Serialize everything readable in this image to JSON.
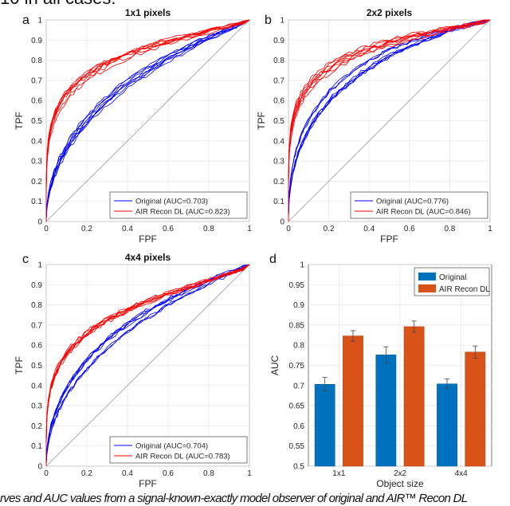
{
  "caption_top": "10   in all cases.",
  "caption_bottom": "rves and AUC values from a signal-known-exactly model observer of original and AIR™ Recon DL",
  "colors": {
    "original_roc": "#0000ff",
    "air_roc": "#ff0000",
    "original_bar": "#0072bd",
    "air_bar": "#d95319",
    "chance": "#999999"
  },
  "chart_data": [
    {
      "panel": "a",
      "type": "line",
      "title": "1x1 pixels",
      "xlabel": "FPF",
      "ylabel": "TPF",
      "xlim": [
        0,
        1
      ],
      "ylim": [
        0,
        1
      ],
      "xticks": [
        "0",
        "0.2",
        "0.4",
        "0.6",
        "0.8",
        "1"
      ],
      "yticks": [
        "0",
        "0.1",
        "0.2",
        "0.3",
        "0.4",
        "0.5",
        "0.6",
        "0.7",
        "0.8",
        "0.9",
        "1"
      ],
      "grid": true,
      "legend_position": "bottom-right",
      "chance_line": true,
      "series": [
        {
          "name": "Original (AUC=0.703)",
          "auc": 0.703,
          "curves": 8,
          "color": "#0000ff"
        },
        {
          "name": "AIR Recon DL (AUC=0.823)",
          "auc": 0.823,
          "curves": 8,
          "color": "#ff0000"
        }
      ]
    },
    {
      "panel": "b",
      "type": "line",
      "title": "2x2 pixels",
      "xlabel": "FPF",
      "ylabel": "TPF",
      "xlim": [
        0,
        1
      ],
      "ylim": [
        0,
        1
      ],
      "xticks": [
        "0",
        "0.2",
        "0.4",
        "0.6",
        "0.8",
        "1"
      ],
      "yticks": [
        "0",
        "0.1",
        "0.2",
        "0.3",
        "0.4",
        "0.5",
        "0.6",
        "0.7",
        "0.8",
        "0.9",
        "1"
      ],
      "grid": true,
      "legend_position": "bottom-right",
      "chance_line": true,
      "series": [
        {
          "name": "Original (AUC=0.776)",
          "auc": 0.776,
          "curves": 8,
          "color": "#0000ff"
        },
        {
          "name": "AIR Recon DL (AUC=0.846)",
          "auc": 0.846,
          "curves": 8,
          "color": "#ff0000"
        }
      ]
    },
    {
      "panel": "c",
      "type": "line",
      "title": "4x4 pixels",
      "xlabel": "FPF",
      "ylabel": "TPF",
      "xlim": [
        0,
        1
      ],
      "ylim": [
        0,
        1
      ],
      "xticks": [
        "0",
        "0.2",
        "0.4",
        "0.6",
        "0.8",
        "1"
      ],
      "yticks": [
        "0",
        "0.1",
        "0.2",
        "0.3",
        "0.4",
        "0.5",
        "0.6",
        "0.7",
        "0.8",
        "0.9",
        "1"
      ],
      "grid": true,
      "legend_position": "bottom-right",
      "chance_line": true,
      "series": [
        {
          "name": "Original (AUC=0.704)",
          "auc": 0.704,
          "curves": 8,
          "color": "#0000ff"
        },
        {
          "name": "AIR Recon DL (AUC=0.783)",
          "auc": 0.783,
          "curves": 8,
          "color": "#ff0000"
        }
      ]
    },
    {
      "panel": "d",
      "type": "bar",
      "title": "",
      "xlabel": "Object size",
      "ylabel": "AUC",
      "ylim": [
        0.5,
        1
      ],
      "yticks": [
        "0.5",
        "0.55",
        "0.6",
        "0.65",
        "0.7",
        "0.75",
        "0.8",
        "0.85",
        "0.9",
        "0.95",
        "1"
      ],
      "categories": [
        "1x1",
        "2x2",
        "4x4"
      ],
      "grid": true,
      "legend_position": "top-right",
      "series": [
        {
          "name": "Original",
          "color": "#0072bd",
          "values": [
            0.703,
            0.776,
            0.704
          ],
          "err_low": [
            0.686,
            0.756,
            0.693
          ],
          "err_high": [
            0.72,
            0.796,
            0.716
          ]
        },
        {
          "name": "AIR Recon DL",
          "color": "#d95319",
          "values": [
            0.823,
            0.846,
            0.783
          ],
          "err_low": [
            0.81,
            0.832,
            0.768
          ],
          "err_high": [
            0.836,
            0.86,
            0.798
          ]
        }
      ]
    }
  ]
}
